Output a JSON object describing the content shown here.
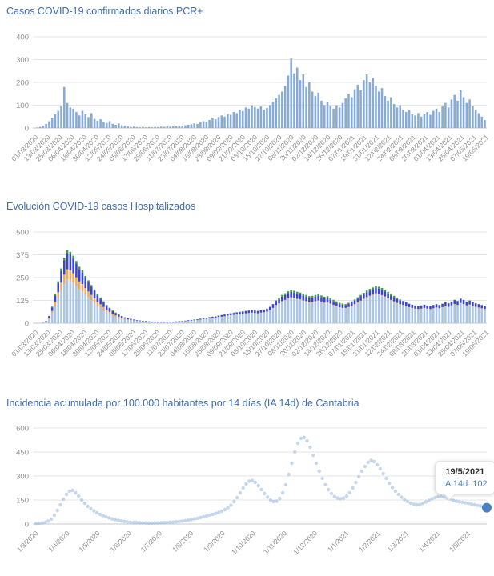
{
  "colors": {
    "title": "#3E6DB5",
    "grid": "#e5e5e5",
    "axis_zero_line": "#c7c7c7",
    "tick_text": "#8f8f8f",
    "bar_blue": "#86abd8",
    "stack_light_blue": "#a9c4e4",
    "stack_orange": "#f0a85c",
    "stack_blue": "#3944d6",
    "stack_green": "#38a038",
    "dot_blue": "#7fa6d6",
    "highlight_dot": "#4a7fc1",
    "tooltip_value_text": "#4d82c3"
  },
  "tooltip": {
    "date": "19/5/2021",
    "value_label": "IA 14d: 102"
  },
  "chart_data": [
    {
      "type": "bar",
      "title": "Casos COVID-19 confirmados diarios PCR+",
      "xlabel": "",
      "ylabel": "",
      "ylim": [
        0,
        400
      ],
      "yticks": [
        0,
        100,
        200,
        300,
        400
      ],
      "grid": true,
      "legend": "none",
      "x_tick_labels": [
        "01/03/2020",
        "13/03/2020",
        "25/03/2020",
        "06/04/2020",
        "18/04/2020",
        "30/04/2020",
        "12/05/2020",
        "24/05/2020",
        "05/06/2020",
        "17/06/2020",
        "29/06/2020",
        "11/07/2020",
        "23/07/2020",
        "04/08/2020",
        "16/08/2020",
        "28/08/2020",
        "09/09/2020",
        "21/09/2020",
        "03/10/2020",
        "15/10/2020",
        "27/10/2020",
        "08/11/2020",
        "20/11/2020",
        "02/12/2020",
        "14/12/2020",
        "26/12/2020",
        "07/01/2021",
        "19/01/2021",
        "31/01/2021",
        "12/02/2021",
        "24/02/2021",
        "08/03/2021",
        "20/03/2021",
        "01/04/2021",
        "13/04/2021",
        "25/04/2021",
        "07/05/2021",
        "19/05/2021"
      ],
      "sample_interval_days": 3,
      "values": [
        2,
        5,
        10,
        18,
        30,
        45,
        60,
        75,
        95,
        180,
        110,
        90,
        85,
        70,
        55,
        75,
        60,
        48,
        65,
        40,
        32,
        38,
        28,
        22,
        30,
        18,
        14,
        20,
        12,
        9,
        7,
        5,
        6,
        4,
        3,
        5,
        3,
        4,
        3,
        5,
        4,
        6,
        5,
        7,
        6,
        8,
        7,
        10,
        9,
        12,
        14,
        16,
        20,
        18,
        25,
        30,
        28,
        35,
        42,
        38,
        48,
        55,
        50,
        62,
        58,
        70,
        65,
        80,
        75,
        90,
        85,
        100,
        92,
        85,
        95,
        80,
        88,
        100,
        115,
        130,
        145,
        160,
        185,
        230,
        305,
        240,
        265,
        210,
        235,
        180,
        200,
        160,
        140,
        155,
        120,
        100,
        115,
        95,
        85,
        100,
        90,
        110,
        130,
        150,
        135,
        170,
        190,
        165,
        210,
        235,
        200,
        220,
        185,
        160,
        175,
        140,
        120,
        135,
        105,
        90,
        100,
        80,
        70,
        78,
        60,
        55,
        65,
        50,
        60,
        70,
        58,
        75,
        85,
        70,
        95,
        110,
        90,
        125,
        145,
        120,
        165,
        135,
        110,
        125,
        95,
        80,
        65,
        50,
        35
      ]
    },
    {
      "type": "bar",
      "subtype": "stacked",
      "title": "Evolución COVID-19 casos  Hospitalizados",
      "xlabel": "",
      "ylabel": "",
      "ylim": [
        0,
        500
      ],
      "yticks": [
        0,
        125,
        250,
        375,
        500
      ],
      "grid": true,
      "legend": "none",
      "x_tick_labels": [
        "01/03/2020",
        "13/03/2020",
        "25/03/2020",
        "06/04/2020",
        "18/04/2020",
        "30/04/2020",
        "12/05/2020",
        "24/05/2020",
        "05/06/2020",
        "17/06/2020",
        "29/06/2020",
        "11/07/2020",
        "23/07/2020",
        "04/08/2020",
        "16/08/2020",
        "28/08/2020",
        "09/09/2020",
        "21/09/2020",
        "03/10/2020",
        "15/10/2020",
        "27/10/2020",
        "08/11/2020",
        "20/11/2020",
        "02/12/2020",
        "14/12/2020",
        "26/12/2020",
        "07/01/2021",
        "19/01/2021",
        "31/01/2021",
        "12/02/2021",
        "24/02/2021",
        "08/03/2021",
        "20/03/2021",
        "01/04/2021",
        "13/04/2021",
        "25/04/2021",
        "07/05/2021",
        "19/05/2021"
      ],
      "sample_interval_days": 3,
      "series": [
        {
          "name": "segment-light-blue",
          "color": "#a9c4e4",
          "values": [
            0,
            2,
            4,
            8,
            24,
            54,
            96,
            138,
            180,
            216,
            240,
            234,
            222,
            204,
            186,
            174,
            156,
            141,
            126,
            111,
            96,
            84,
            72,
            60,
            51,
            42,
            35,
            29,
            24,
            20,
            17,
            18,
            15,
            13,
            11,
            10,
            9,
            8,
            7,
            6,
            6,
            5,
            5,
            6,
            6,
            7,
            8,
            8,
            9,
            10,
            12,
            14,
            16,
            17,
            20,
            22,
            23,
            26,
            28,
            30,
            33,
            35,
            37,
            41,
            43,
            45,
            47,
            49,
            51,
            53,
            55,
            56,
            55,
            53,
            56,
            58,
            62,
            70,
            82,
            97,
            106,
            118,
            125,
            133,
            138,
            135,
            131,
            128,
            122,
            118,
            112,
            114,
            118,
            122,
            116,
            110,
            112,
            105,
            97,
            91,
            85,
            82,
            82,
            87,
            94,
            101,
            111,
            121,
            131,
            139,
            147,
            153,
            160,
            156,
            150,
            143,
            134,
            125,
            117,
            109,
            101,
            98,
            92,
            86,
            82,
            78,
            76,
            78,
            82,
            78,
            76,
            80,
            84,
            80,
            86,
            92,
            88,
            96,
            102,
            98,
            108,
            102,
            96,
            100,
            92,
            88,
            84,
            80,
            76
          ]
        },
        {
          "name": "segment-orange",
          "color": "#f0a85c",
          "values": [
            0,
            0,
            0,
            1,
            6,
            13,
            22,
            32,
            42,
            50,
            56,
            55,
            52,
            48,
            43,
            41,
            36,
            33,
            29,
            26,
            22,
            20,
            17,
            14,
            12,
            10,
            8,
            7,
            6,
            5,
            4,
            1,
            1,
            1,
            1,
            0,
            0,
            0,
            0,
            0,
            0,
            0,
            0,
            0,
            0,
            0,
            0,
            0,
            0,
            1,
            1,
            0,
            0,
            0,
            0,
            1,
            1,
            1,
            1,
            1,
            1,
            1,
            1,
            1,
            1,
            1,
            1,
            1,
            1,
            1,
            1,
            2,
            1,
            1,
            2,
            2,
            2,
            2,
            2,
            3,
            3,
            3,
            3,
            4,
            4,
            4,
            3,
            3,
            3,
            3,
            3,
            3,
            3,
            3,
            3,
            3,
            3,
            3,
            3,
            2,
            2,
            2,
            2,
            2,
            2,
            3,
            3,
            3,
            3,
            4,
            4,
            4,
            4,
            4,
            4,
            4,
            3,
            3,
            3,
            3,
            3,
            2,
            2,
            2,
            2,
            2,
            2,
            2,
            2,
            2,
            2,
            2,
            2,
            2,
            2,
            2,
            2,
            2,
            3,
            2,
            3,
            3,
            2,
            3,
            2,
            2,
            2,
            2,
            2
          ]
        },
        {
          "name": "segment-blue",
          "color": "#3944d6",
          "values": [
            0,
            0,
            1,
            3,
            9,
            20,
            35,
            51,
            66,
            79,
            88,
            86,
            81,
            75,
            68,
            64,
            57,
            52,
            46,
            41,
            35,
            31,
            26,
            22,
            19,
            15,
            13,
            10,
            9,
            7,
            6,
            5,
            4,
            3,
            3,
            3,
            3,
            2,
            2,
            2,
            2,
            2,
            2,
            2,
            2,
            2,
            2,
            3,
            3,
            3,
            3,
            3,
            4,
            4,
            4,
            5,
            5,
            6,
            6,
            6,
            7,
            8,
            9,
            9,
            10,
            10,
            11,
            11,
            12,
            12,
            13,
            13,
            13,
            12,
            13,
            14,
            14,
            16,
            19,
            22,
            22,
            25,
            26,
            28,
            29,
            28,
            28,
            27,
            26,
            25,
            24,
            24,
            25,
            26,
            24,
            23,
            24,
            22,
            20,
            19,
            18,
            17,
            16,
            17,
            18,
            20,
            21,
            23,
            25,
            27,
            28,
            29,
            31,
            30,
            29,
            27,
            26,
            24,
            23,
            21,
            20,
            21,
            20,
            18,
            17,
            17,
            16,
            17,
            17,
            17,
            16,
            17,
            18,
            17,
            18,
            20,
            19,
            20,
            22,
            21,
            23,
            22,
            20,
            21,
            20,
            19,
            18,
            17,
            16
          ]
        },
        {
          "name": "segment-green",
          "color": "#38a038",
          "values": [
            0,
            0,
            0,
            0,
            1,
            4,
            6,
            9,
            12,
            14,
            16,
            16,
            15,
            14,
            12,
            12,
            10,
            9,
            8,
            7,
            6,
            6,
            5,
            4,
            3,
            3,
            2,
            2,
            1,
            1,
            1,
            0,
            0,
            0,
            0,
            0,
            0,
            0,
            0,
            0,
            0,
            0,
            0,
            0,
            0,
            0,
            0,
            0,
            0,
            0,
            0,
            1,
            0,
            1,
            1,
            0,
            1,
            0,
            1,
            1,
            1,
            1,
            1,
            1,
            1,
            2,
            1,
            2,
            1,
            2,
            1,
            1,
            1,
            2,
            1,
            1,
            2,
            2,
            2,
            3,
            9,
            9,
            10,
            10,
            11,
            11,
            10,
            10,
            9,
            9,
            9,
            9,
            9,
            9,
            9,
            9,
            9,
            8,
            8,
            8,
            7,
            7,
            5,
            6,
            6,
            6,
            7,
            8,
            8,
            9,
            9,
            10,
            10,
            10,
            10,
            9,
            9,
            8,
            7,
            7,
            6,
            1,
            1,
            1,
            1,
            1,
            1,
            1,
            1,
            1,
            1,
            1,
            1,
            1,
            1,
            1,
            1,
            1,
            1,
            1,
            1,
            1,
            1,
            1,
            1,
            1,
            1,
            1,
            1
          ]
        }
      ]
    },
    {
      "type": "scatter",
      "subtype": "dotted-line",
      "title": "Incidencia acumulada por 100.000 habitantes por 14 días (IA 14d) de Cantabria",
      "xlabel": "",
      "ylabel": "",
      "ylim": [
        0,
        600
      ],
      "yticks": [
        0,
        150,
        300,
        450,
        600
      ],
      "grid": true,
      "legend": "none",
      "x_tick_labels": [
        "1/3/2020",
        "1/4/2020",
        "1/5/2020",
        "1/6/2020",
        "1/7/2020",
        "1/8/2020",
        "1/9/2020",
        "1/10/2020",
        "1/11/2020",
        "1/12/2020",
        "1/1/2021",
        "1/2/2021",
        "1/3/2021",
        "1/4/2021",
        "1/5/2021"
      ],
      "x_tick_days": [
        0,
        31,
        61,
        92,
        122,
        153,
        184,
        214,
        245,
        275,
        306,
        337,
        365,
        396,
        426
      ],
      "total_span_days": 444,
      "sample_interval_days": 3,
      "values": [
        4,
        5,
        7,
        10,
        18,
        30,
        55,
        85,
        120,
        155,
        185,
        205,
        210,
        195,
        175,
        150,
        130,
        110,
        95,
        82,
        70,
        60,
        52,
        45,
        38,
        32,
        27,
        23,
        19,
        16,
        13,
        11,
        10,
        9,
        8,
        7,
        7,
        6,
        6,
        7,
        7,
        8,
        9,
        10,
        11,
        12,
        14,
        16,
        18,
        21,
        24,
        28,
        32,
        36,
        40,
        45,
        50,
        55,
        60,
        66,
        72,
        80,
        90,
        102,
        118,
        140,
        165,
        195,
        225,
        250,
        268,
        272,
        260,
        240,
        215,
        190,
        168,
        150,
        140,
        142,
        160,
        195,
        245,
        310,
        380,
        450,
        505,
        535,
        540,
        520,
        480,
        430,
        380,
        330,
        285,
        245,
        215,
        190,
        172,
        162,
        158,
        162,
        175,
        195,
        225,
        260,
        295,
        330,
        360,
        385,
        398,
        390,
        370,
        345,
        315,
        285,
        255,
        228,
        205,
        185,
        168,
        152,
        140,
        130,
        124,
        120,
        122,
        128,
        138,
        148,
        158,
        165,
        170,
        172,
        168,
        162,
        155,
        148,
        142,
        138,
        135,
        132,
        128,
        124,
        120,
        116,
        112,
        107,
        102
      ],
      "highlighted_point": {
        "date": "19/5/2021",
        "value": 102
      }
    }
  ]
}
